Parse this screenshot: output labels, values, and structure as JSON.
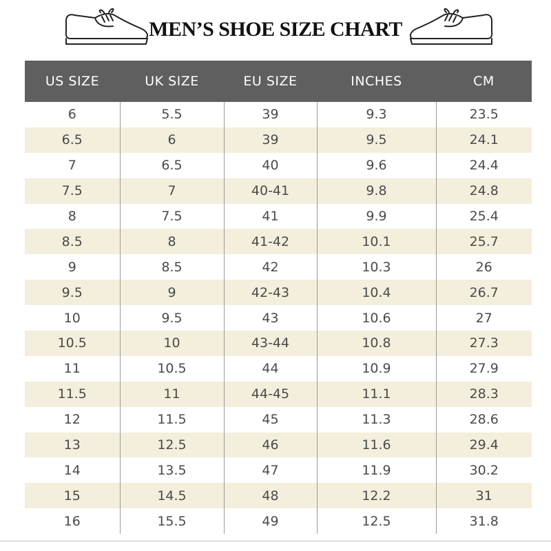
{
  "title": "MEN’S SHOE SIZE CHART",
  "icons": {
    "left": "shoe-icon",
    "right": "shoe-icon"
  },
  "colors": {
    "header_bg": "#5f5f5f",
    "stripe": "#f3efdc",
    "text": "#4a4a4a"
  },
  "table": {
    "headers": [
      "US SIZE",
      "UK SIZE",
      "EU SIZE",
      "INCHES",
      "CM"
    ],
    "rows": [
      [
        "6",
        "5.5",
        "39",
        "9.3",
        "23.5"
      ],
      [
        "6.5",
        "6",
        "39",
        "9.5",
        "24.1"
      ],
      [
        "7",
        "6.5",
        "40",
        "9.6",
        "24.4"
      ],
      [
        "7.5",
        "7",
        "40-41",
        "9.8",
        "24.8"
      ],
      [
        "8",
        "7.5",
        "41",
        "9.9",
        "25.4"
      ],
      [
        "8.5",
        "8",
        "41-42",
        "10.1",
        "25.7"
      ],
      [
        "9",
        "8.5",
        "42",
        "10.3",
        "26"
      ],
      [
        "9.5",
        "9",
        "42-43",
        "10.4",
        "26.7"
      ],
      [
        "10",
        "9.5",
        "43",
        "10.6",
        "27"
      ],
      [
        "10.5",
        "10",
        "43-44",
        "10.8",
        "27.3"
      ],
      [
        "11",
        "10.5",
        "44",
        "10.9",
        "27.9"
      ],
      [
        "11.5",
        "11",
        "44-45",
        "11.1",
        "28.3"
      ],
      [
        "12",
        "11.5",
        "45",
        "11.3",
        "28.6"
      ],
      [
        "13",
        "12.5",
        "46",
        "11.6",
        "29.4"
      ],
      [
        "14",
        "13.5",
        "47",
        "11.9",
        "30.2"
      ],
      [
        "15",
        "14.5",
        "48",
        "12.2",
        "31"
      ],
      [
        "16",
        "15.5",
        "49",
        "12.5",
        "31.8"
      ]
    ]
  }
}
